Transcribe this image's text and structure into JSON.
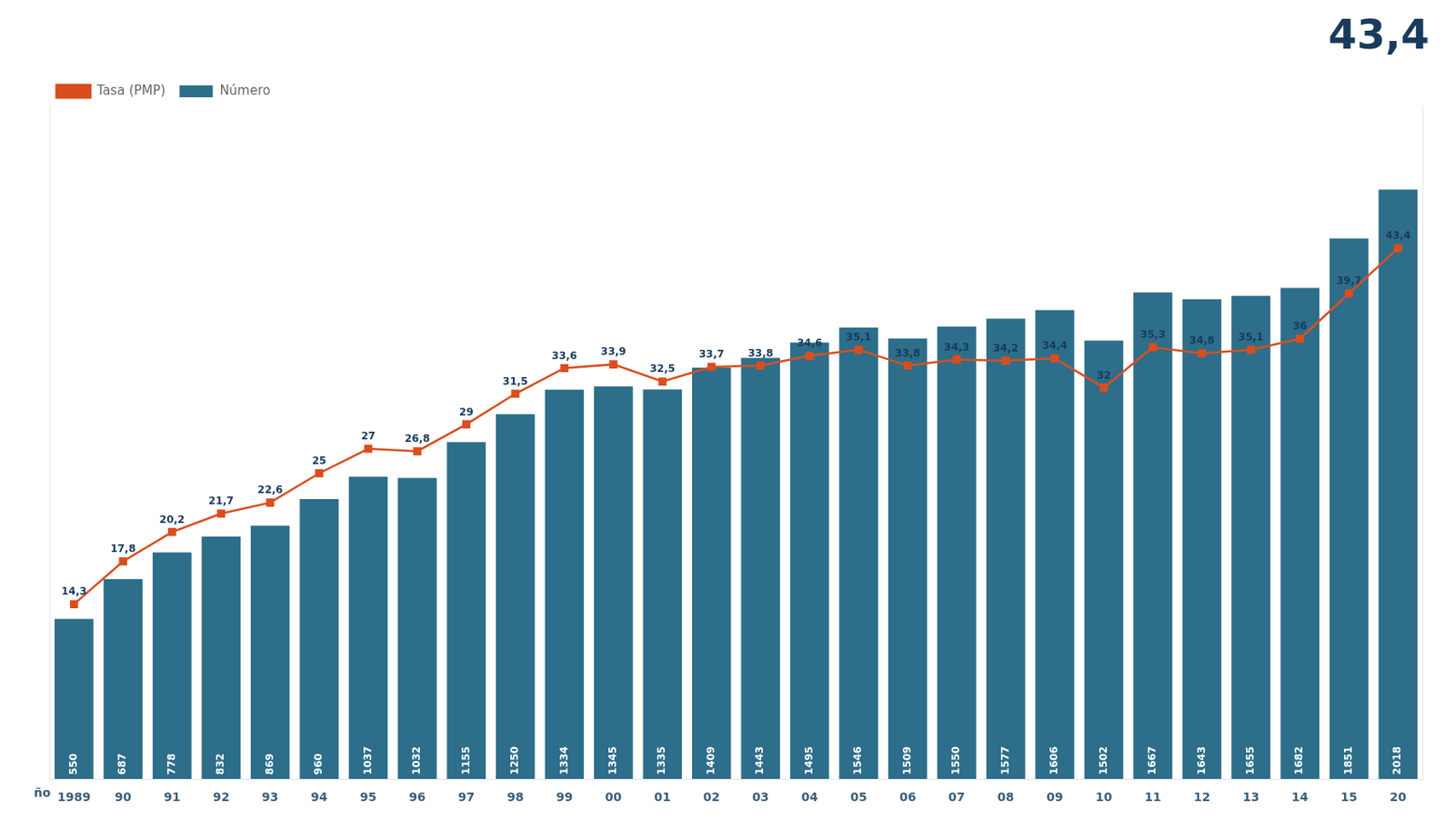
{
  "chart_data": {
    "type": "bar",
    "title": "43,4",
    "categories": [
      "1989",
      "90",
      "91",
      "92",
      "93",
      "94",
      "95",
      "96",
      "97",
      "98",
      "99",
      "00",
      "01",
      "02",
      "03",
      "04",
      "05",
      "06",
      "07",
      "08",
      "09",
      "10",
      "11",
      "12",
      "13",
      "14",
      "15",
      "20"
    ],
    "series": [
      {
        "name": "Número",
        "type": "bar",
        "color": "#2d6e8a",
        "values": [
          550,
          687,
          778,
          832,
          869,
          960,
          1037,
          1032,
          1155,
          1250,
          1334,
          1345,
          1335,
          1409,
          1443,
          1495,
          1546,
          1509,
          1550,
          1577,
          1606,
          1502,
          1667,
          1643,
          1655,
          1682,
          1851,
          2018
        ]
      },
      {
        "name": "Tasa (PMP)",
        "type": "line",
        "axis": "y2",
        "color": "#d94e1f",
        "marker": "square",
        "values": [
          14.3,
          17.8,
          20.2,
          21.7,
          22.6,
          25.0,
          27.0,
          26.8,
          29.0,
          31.5,
          33.6,
          33.9,
          32.5,
          33.7,
          33.8,
          34.6,
          35.1,
          33.8,
          34.3,
          34.2,
          34.4,
          32.0,
          35.3,
          34.8,
          35.1,
          36.0,
          39.7,
          43.4
        ],
        "value_labels": [
          "14,3",
          "17,8",
          "20,2",
          "21,7",
          "22,6",
          "25",
          "27",
          "26,8",
          "29",
          "31,5",
          "33,6",
          "33,9",
          "32,5",
          "33,7",
          "33,8",
          "34,6",
          "35,1",
          "33,8",
          "34,3",
          "34,2",
          "34,4",
          "32",
          "35,3",
          "34,8",
          "35,1",
          "36",
          "39,7",
          "43,4"
        ]
      }
    ],
    "ylim": [
      0,
      2300
    ],
    "y2lim": [
      0,
      55
    ],
    "grid": false,
    "legend": "upper left",
    "data_labels": true,
    "tick_labels": "x",
    "annotations": [
      "ño"
    ]
  }
}
